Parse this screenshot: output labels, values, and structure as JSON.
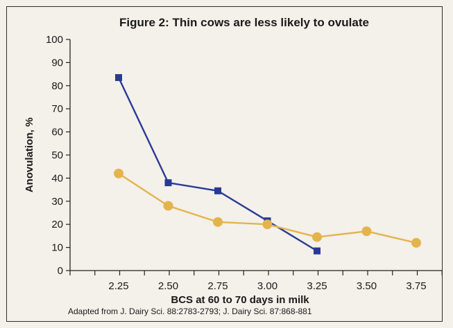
{
  "chart_data": {
    "type": "line",
    "title": "Figure 2: Thin cows are less likely to ovulate",
    "xlabel": "BCS at 60 to 70 days in milk",
    "ylabel": "Anovulation, %",
    "source": "Adapted from J. Dairy Sci. 88:2783-2793; J. Dairy Sci. 87:868-881",
    "categories": [
      "2.25",
      "2.50",
      "2.75",
      "3.00",
      "3.25",
      "3.50",
      "3.75"
    ],
    "yticks": [
      "0",
      "10",
      "20",
      "30",
      "40",
      "50",
      "60",
      "70",
      "80",
      "90",
      "100"
    ],
    "ylim": [
      0,
      100
    ],
    "grid": false,
    "series": [
      {
        "marker": "square",
        "color": "#283a96",
        "x": [
          2.25,
          2.5,
          2.75,
          3.0,
          3.25
        ],
        "values": [
          83.5,
          38,
          34.5,
          21.5,
          8.5
        ]
      },
      {
        "marker": "circle",
        "color": "#e3b44e",
        "x": [
          2.25,
          2.5,
          2.75,
          3.0,
          3.25,
          3.5,
          3.75
        ],
        "values": [
          42,
          28,
          21,
          20,
          14.5,
          17,
          12
        ]
      }
    ]
  }
}
